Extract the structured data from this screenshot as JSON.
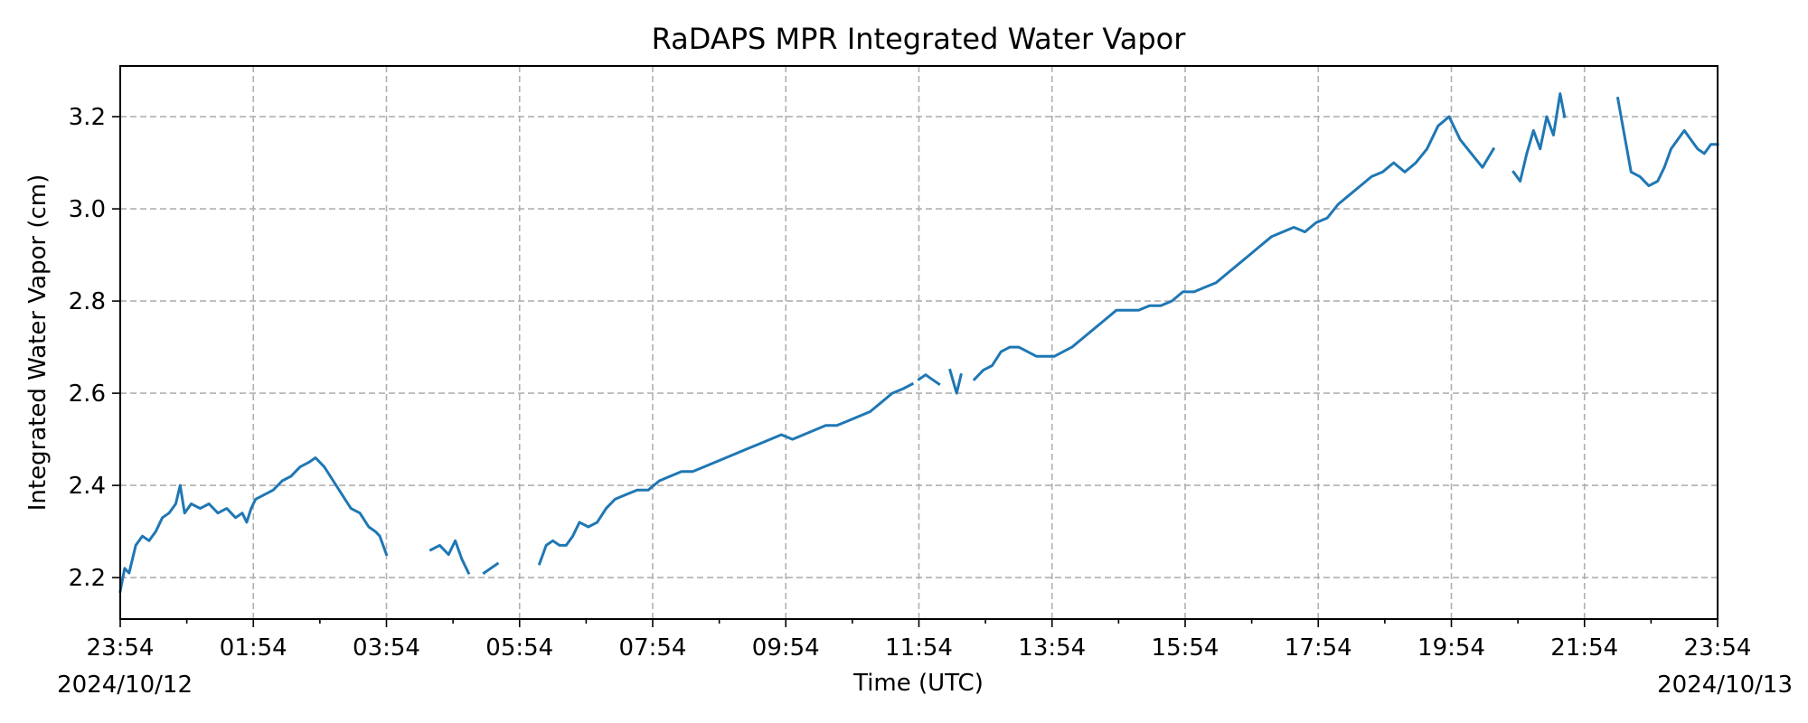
{
  "chart_data": {
    "type": "line",
    "title": "RaDAPS MPR Integrated Water Vapor",
    "xlabel": "Time (UTC)",
    "ylabel": "Integrated Water Vapor (cm)",
    "x_start_label": "2024/10/12",
    "x_end_label": "2024/10/13",
    "x_ticks": [
      "23:54",
      "01:54",
      "03:54",
      "05:54",
      "07:54",
      "09:54",
      "11:54",
      "13:54",
      "15:54",
      "17:54",
      "19:54",
      "21:54",
      "23:54"
    ],
    "y_ticks": [
      "2.2",
      "2.4",
      "2.6",
      "2.8",
      "3.0",
      "3.2"
    ],
    "xlim": [
      "2024-10-12 23:54",
      "2024-10-13 23:54"
    ],
    "ylim": [
      2.11,
      3.31
    ],
    "grid": true,
    "color": "#1f77b4",
    "series": [
      {
        "segments": [
          [
            [
              "2024-10-12 23:54",
              2.17
            ],
            [
              "2024-10-12 23:58",
              2.22
            ],
            [
              "2024-10-13 00:02",
              2.21
            ],
            [
              "2024-10-13 00:08",
              2.27
            ],
            [
              "2024-10-13 00:14",
              2.29
            ],
            [
              "2024-10-13 00:20",
              2.28
            ],
            [
              "2024-10-13 00:26",
              2.3
            ],
            [
              "2024-10-13 00:32",
              2.33
            ],
            [
              "2024-10-13 00:38",
              2.34
            ],
            [
              "2024-10-13 00:44",
              2.36
            ],
            [
              "2024-10-13 00:48",
              2.4
            ],
            [
              "2024-10-13 00:52",
              2.34
            ],
            [
              "2024-10-13 00:58",
              2.36
            ],
            [
              "2024-10-13 01:06",
              2.35
            ],
            [
              "2024-10-13 01:14",
              2.36
            ],
            [
              "2024-10-13 01:22",
              2.34
            ],
            [
              "2024-10-13 01:30",
              2.35
            ],
            [
              "2024-10-13 01:38",
              2.33
            ],
            [
              "2024-10-13 01:44",
              2.34
            ],
            [
              "2024-10-13 01:48",
              2.32
            ],
            [
              "2024-10-13 01:52",
              2.35
            ],
            [
              "2024-10-13 01:56",
              2.37
            ],
            [
              "2024-10-13 02:04",
              2.38
            ],
            [
              "2024-10-13 02:12",
              2.39
            ],
            [
              "2024-10-13 02:20",
              2.41
            ],
            [
              "2024-10-13 02:28",
              2.42
            ],
            [
              "2024-10-13 02:36",
              2.44
            ],
            [
              "2024-10-13 02:44",
              2.45
            ],
            [
              "2024-10-13 02:50",
              2.46
            ],
            [
              "2024-10-13 02:58",
              2.44
            ],
            [
              "2024-10-13 03:06",
              2.41
            ],
            [
              "2024-10-13 03:14",
              2.38
            ],
            [
              "2024-10-13 03:22",
              2.35
            ],
            [
              "2024-10-13 03:30",
              2.34
            ],
            [
              "2024-10-13 03:38",
              2.31
            ],
            [
              "2024-10-13 03:44",
              2.3
            ],
            [
              "2024-10-13 03:48",
              2.29
            ],
            [
              "2024-10-13 03:54",
              2.25
            ]
          ],
          [
            [
              "2024-10-13 04:34",
              2.26
            ],
            [
              "2024-10-13 04:42",
              2.27
            ],
            [
              "2024-10-13 04:50",
              2.25
            ],
            [
              "2024-10-13 04:56",
              2.28
            ],
            [
              "2024-10-13 05:02",
              2.24
            ],
            [
              "2024-10-13 05:08",
              2.21
            ]
          ],
          [
            [
              "2024-10-13 05:22",
              2.21
            ],
            [
              "2024-10-13 05:28",
              2.22
            ],
            [
              "2024-10-13 05:34",
              2.23
            ]
          ],
          [
            [
              "2024-10-13 06:12",
              2.23
            ],
            [
              "2024-10-13 06:18",
              2.27
            ],
            [
              "2024-10-13 06:24",
              2.28
            ],
            [
              "2024-10-13 06:30",
              2.27
            ],
            [
              "2024-10-13 06:36",
              2.27
            ],
            [
              "2024-10-13 06:42",
              2.29
            ],
            [
              "2024-10-13 06:48",
              2.32
            ],
            [
              "2024-10-13 06:56",
              2.31
            ],
            [
              "2024-10-13 07:04",
              2.32
            ],
            [
              "2024-10-13 07:12",
              2.35
            ],
            [
              "2024-10-13 07:20",
              2.37
            ],
            [
              "2024-10-13 07:30",
              2.38
            ],
            [
              "2024-10-13 07:40",
              2.39
            ],
            [
              "2024-10-13 07:50",
              2.39
            ],
            [
              "2024-10-13 08:00",
              2.41
            ],
            [
              "2024-10-13 08:10",
              2.42
            ],
            [
              "2024-10-13 08:20",
              2.43
            ],
            [
              "2024-10-13 08:30",
              2.43
            ],
            [
              "2024-10-13 08:40",
              2.44
            ],
            [
              "2024-10-13 08:50",
              2.45
            ],
            [
              "2024-10-13 09:00",
              2.46
            ],
            [
              "2024-10-13 09:10",
              2.47
            ],
            [
              "2024-10-13 09:20",
              2.48
            ],
            [
              "2024-10-13 09:30",
              2.49
            ],
            [
              "2024-10-13 09:40",
              2.5
            ],
            [
              "2024-10-13 09:50",
              2.51
            ],
            [
              "2024-10-13 10:00",
              2.5
            ],
            [
              "2024-10-13 10:10",
              2.51
            ],
            [
              "2024-10-13 10:20",
              2.52
            ],
            [
              "2024-10-13 10:30",
              2.53
            ],
            [
              "2024-10-13 10:40",
              2.53
            ],
            [
              "2024-10-13 10:50",
              2.54
            ],
            [
              "2024-10-13 11:00",
              2.55
            ],
            [
              "2024-10-13 11:10",
              2.56
            ],
            [
              "2024-10-13 11:20",
              2.58
            ],
            [
              "2024-10-13 11:30",
              2.6
            ],
            [
              "2024-10-13 11:40",
              2.61
            ],
            [
              "2024-10-13 11:48",
              2.62
            ]
          ],
          [
            [
              "2024-10-13 11:54",
              2.63
            ],
            [
              "2024-10-13 12:00",
              2.64
            ],
            [
              "2024-10-13 12:06",
              2.63
            ],
            [
              "2024-10-13 12:12",
              2.62
            ]
          ],
          [
            [
              "2024-10-13 12:22",
              2.65
            ],
            [
              "2024-10-13 12:28",
              2.6
            ],
            [
              "2024-10-13 12:32",
              2.64
            ]
          ],
          [
            [
              "2024-10-13 12:44",
              2.63
            ],
            [
              "2024-10-13 12:52",
              2.65
            ],
            [
              "2024-10-13 13:00",
              2.66
            ],
            [
              "2024-10-13 13:08",
              2.69
            ],
            [
              "2024-10-13 13:16",
              2.7
            ],
            [
              "2024-10-13 13:24",
              2.7
            ],
            [
              "2024-10-13 13:32",
              2.69
            ],
            [
              "2024-10-13 13:40",
              2.68
            ],
            [
              "2024-10-13 13:48",
              2.68
            ],
            [
              "2024-10-13 13:56",
              2.68
            ],
            [
              "2024-10-13 14:04",
              2.69
            ],
            [
              "2024-10-13 14:12",
              2.7
            ],
            [
              "2024-10-13 14:22",
              2.72
            ],
            [
              "2024-10-13 14:32",
              2.74
            ],
            [
              "2024-10-13 14:42",
              2.76
            ],
            [
              "2024-10-13 14:52",
              2.78
            ],
            [
              "2024-10-13 15:02",
              2.78
            ],
            [
              "2024-10-13 15:12",
              2.78
            ],
            [
              "2024-10-13 15:22",
              2.79
            ],
            [
              "2024-10-13 15:32",
              2.79
            ],
            [
              "2024-10-13 15:42",
              2.8
            ],
            [
              "2024-10-13 15:52",
              2.82
            ],
            [
              "2024-10-13 16:02",
              2.82
            ],
            [
              "2024-10-13 16:12",
              2.83
            ],
            [
              "2024-10-13 16:22",
              2.84
            ],
            [
              "2024-10-13 16:32",
              2.86
            ],
            [
              "2024-10-13 16:42",
              2.88
            ],
            [
              "2024-10-13 16:52",
              2.9
            ],
            [
              "2024-10-13 17:02",
              2.92
            ],
            [
              "2024-10-13 17:12",
              2.94
            ],
            [
              "2024-10-13 17:22",
              2.95
            ],
            [
              "2024-10-13 17:32",
              2.96
            ],
            [
              "2024-10-13 17:42",
              2.95
            ],
            [
              "2024-10-13 17:52",
              2.97
            ],
            [
              "2024-10-13 18:02",
              2.98
            ],
            [
              "2024-10-13 18:12",
              3.01
            ],
            [
              "2024-10-13 18:22",
              3.03
            ],
            [
              "2024-10-13 18:32",
              3.05
            ],
            [
              "2024-10-13 18:42",
              3.07
            ],
            [
              "2024-10-13 18:52",
              3.08
            ],
            [
              "2024-10-13 19:02",
              3.1
            ],
            [
              "2024-10-13 19:12",
              3.08
            ],
            [
              "2024-10-13 19:22",
              3.1
            ],
            [
              "2024-10-13 19:32",
              3.13
            ],
            [
              "2024-10-13 19:42",
              3.18
            ],
            [
              "2024-10-13 19:52",
              3.2
            ],
            [
              "2024-10-13 20:02",
              3.15
            ],
            [
              "2024-10-13 20:12",
              3.12
            ],
            [
              "2024-10-13 20:22",
              3.09
            ],
            [
              "2024-10-13 20:32",
              3.13
            ]
          ],
          [
            [
              "2024-10-13 20:50",
              3.08
            ],
            [
              "2024-10-13 20:56",
              3.06
            ],
            [
              "2024-10-13 21:02",
              3.12
            ],
            [
              "2024-10-13 21:08",
              3.17
            ],
            [
              "2024-10-13 21:14",
              3.13
            ],
            [
              "2024-10-13 21:20",
              3.2
            ],
            [
              "2024-10-13 21:26",
              3.16
            ],
            [
              "2024-10-13 21:32",
              3.25
            ],
            [
              "2024-10-13 21:36",
              3.2
            ]
          ],
          [
            [
              "2024-10-13 22:24",
              3.24
            ],
            [
              "2024-10-13 22:30",
              3.16
            ],
            [
              "2024-10-13 22:36",
              3.08
            ],
            [
              "2024-10-13 22:44",
              3.07
            ],
            [
              "2024-10-13 22:52",
              3.05
            ],
            [
              "2024-10-13 23:00",
              3.06
            ],
            [
              "2024-10-13 23:06",
              3.09
            ],
            [
              "2024-10-13 23:12",
              3.13
            ],
            [
              "2024-10-13 23:18",
              3.15
            ],
            [
              "2024-10-13 23:24",
              3.17
            ],
            [
              "2024-10-13 23:30",
              3.15
            ],
            [
              "2024-10-13 23:36",
              3.13
            ],
            [
              "2024-10-13 23:42",
              3.12
            ],
            [
              "2024-10-13 23:48",
              3.14
            ],
            [
              "2024-10-13 23:54",
              3.14
            ]
          ]
        ]
      }
    ]
  }
}
